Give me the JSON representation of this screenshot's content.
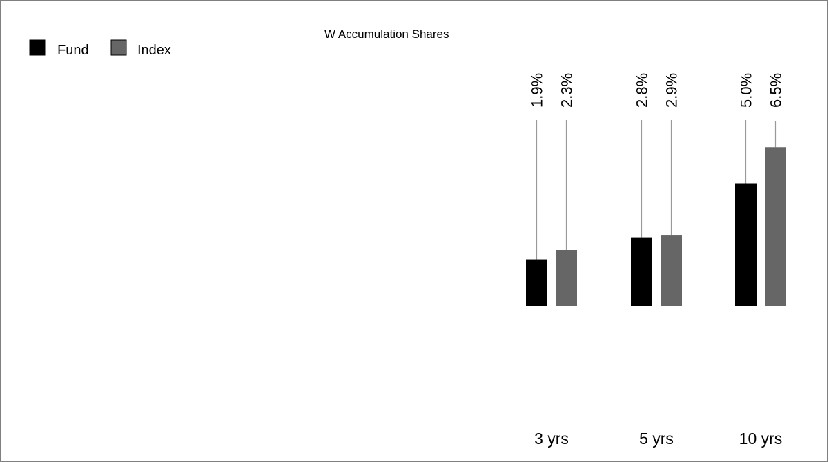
{
  "chart_data": {
    "type": "bar",
    "title": "W Accumulation Shares",
    "categories": [
      "3 yrs",
      "5 yrs",
      "10 yrs"
    ],
    "series": [
      {
        "name": "Fund",
        "color": "#000000",
        "values": [
          1.9,
          2.8,
          5.0
        ],
        "labels": [
          "1.9%",
          "2.8%",
          "5.0%"
        ]
      },
      {
        "name": "Index",
        "color": "#666666",
        "values": [
          2.3,
          2.9,
          6.5
        ],
        "labels": [
          "2.3%",
          "2.9%",
          "6.5%"
        ]
      }
    ],
    "legend": "top-left",
    "grid": false
  }
}
